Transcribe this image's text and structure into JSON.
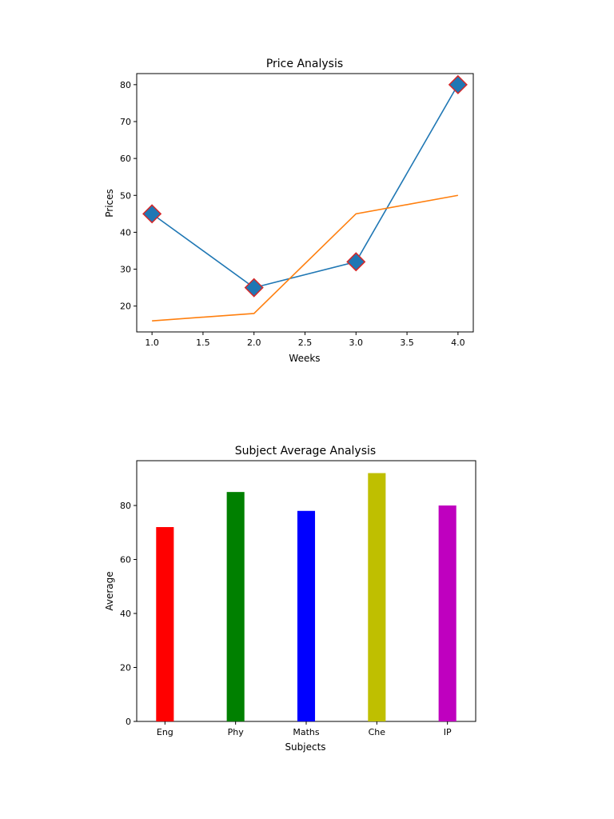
{
  "chart_data": [
    {
      "type": "line",
      "title": "Price Analysis",
      "xlabel": "Weeks",
      "ylabel": "Prices",
      "xlim": [
        0.85,
        4.15
      ],
      "ylim": [
        13,
        83
      ],
      "xticks": [
        1.0,
        1.5,
        2.0,
        2.5,
        3.0,
        3.5,
        4.0
      ],
      "xtick_labels": [
        "1.0",
        "1.5",
        "2.0",
        "2.5",
        "3.0",
        "3.5",
        "4.0"
      ],
      "yticks": [
        20,
        30,
        40,
        50,
        60,
        70,
        80
      ],
      "ytick_labels": [
        "20",
        "30",
        "40",
        "50",
        "60",
        "70",
        "80"
      ],
      "grid": false,
      "series": [
        {
          "x": [
            1,
            2,
            3,
            4
          ],
          "values": [
            45,
            25,
            32,
            80
          ],
          "color": "#1f77b4",
          "marker": "diamond",
          "marker_edge_color": "#d62728"
        },
        {
          "x": [
            1,
            2,
            3,
            4
          ],
          "values": [
            16,
            18,
            45,
            50
          ],
          "color": "#ff7f0e",
          "marker": "none"
        }
      ]
    },
    {
      "type": "bar",
      "title": "Subject Average Analysis",
      "xlabel": "Subjects",
      "ylabel": "Average",
      "categories": [
        "Eng",
        "Phy",
        "Maths",
        "Che",
        "IP"
      ],
      "values": [
        72,
        85,
        78,
        92,
        80
      ],
      "colors": [
        "#ff0000",
        "#008000",
        "#0000ff",
        "#bfbf00",
        "#bf00bf"
      ],
      "ylim": [
        0,
        96.6
      ],
      "yticks": [
        0,
        20,
        40,
        60,
        80
      ],
      "ytick_labels": [
        "0",
        "20",
        "40",
        "60",
        "80"
      ],
      "grid": false
    }
  ]
}
